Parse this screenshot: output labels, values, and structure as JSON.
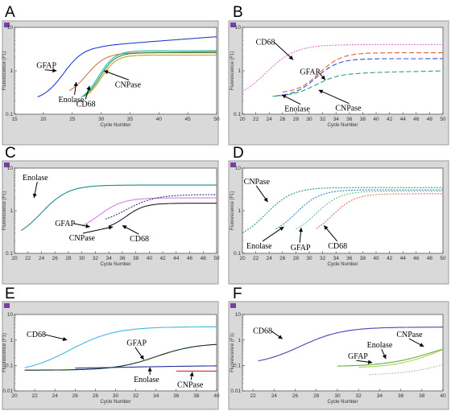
{
  "chart_data": [
    {
      "panel": "A",
      "type": "line",
      "xlabel": "Cycle Number",
      "ylabel": "Fluorescence (F1)",
      "xlim": [
        15,
        50
      ],
      "xticks": [
        15,
        20,
        25,
        30,
        35,
        40,
        45,
        50
      ],
      "ylim": [
        0.1,
        10
      ],
      "yscale": "log",
      "yticks": [
        0.1,
        1,
        10
      ],
      "series": [
        {
          "name": "GFAP",
          "color": "#1f3fcc",
          "dash": "solid",
          "start": 19,
          "end": 50,
          "midpoint": 23.5,
          "floor": 0.2,
          "plateau": 3.8,
          "steep": 0.55,
          "drift": 0.3
        },
        {
          "name": "Enolase",
          "color": "#e07040",
          "dash": "solid",
          "start": 24.5,
          "end": 50,
          "midpoint": 27.5,
          "floor": 0.25,
          "plateau": 2.6,
          "steep": 0.6,
          "drift": 0.05
        },
        {
          "name": "CD68",
          "color": "#20b8a8",
          "dash": "solid",
          "start": 26.5,
          "end": 50,
          "midpoint": 29.5,
          "floor": 0.18,
          "plateau": 2.9,
          "steep": 0.7,
          "drift": 0
        },
        {
          "name": "CNPase",
          "color": "#2a8a4a",
          "dash": "solid",
          "start": 27,
          "end": 50,
          "midpoint": 29.8,
          "floor": 0.2,
          "plateau": 2.6,
          "steep": 0.75,
          "drift": 0
        },
        {
          "name": "",
          "color": "#c8a020",
          "dash": "solid",
          "start": 27,
          "end": 50,
          "midpoint": 30,
          "floor": 0.2,
          "plateau": 2.3,
          "steep": 0.75,
          "drift": 0
        }
      ],
      "callouts": [
        {
          "text": "GFAP",
          "x": 18.8,
          "y": 1.15,
          "anchor": "start",
          "tx": 22.3,
          "ty": 1.0
        },
        {
          "text": "Enolase",
          "x": 22.6,
          "y": 0.19,
          "anchor": "start",
          "tx": 25.7,
          "ty": 0.55
        },
        {
          "text": "CD68",
          "x": 25.7,
          "y": 0.15,
          "anchor": "start",
          "tx": 28.0,
          "ty": 0.45
        },
        {
          "text": "CNPase",
          "x": 32.4,
          "y": 0.42,
          "anchor": "start",
          "tx": 30.5,
          "ty": 1.0
        }
      ]
    },
    {
      "panel": "B",
      "type": "line",
      "xlabel": "Cycle Number",
      "ylabel": "Fluorescence (F1)",
      "xlim": [
        20,
        50
      ],
      "xticks": [
        20,
        22,
        24,
        26,
        28,
        30,
        32,
        34,
        36,
        38,
        40,
        42,
        44,
        46,
        48,
        50
      ],
      "ylim": [
        0.1,
        10
      ],
      "yscale": "log",
      "yticks": [
        0.1,
        1,
        10
      ],
      "series": [
        {
          "name": "CD68",
          "color": "#e070d0",
          "dash": "2,1.5",
          "start": 20,
          "end": 50,
          "midpoint": 23.5,
          "floor": 0.2,
          "plateau": 4.0,
          "steep": 0.45,
          "drift": 0
        },
        {
          "name": "GFAP",
          "color": "#e06040",
          "dash": "6,3",
          "start": 26,
          "end": 50,
          "midpoint": 31.5,
          "floor": 0.3,
          "plateau": 2.6,
          "steep": 0.6,
          "drift": 0
        },
        {
          "name": "",
          "color": "#3050d0",
          "dash": "6,3",
          "start": 25,
          "end": 50,
          "midpoint": 31,
          "floor": 0.25,
          "plateau": 1.9,
          "steep": 0.6,
          "drift": 0
        },
        {
          "name": "Enolase",
          "color": "#30a070",
          "dash": "6,3",
          "start": 24.5,
          "end": 50,
          "midpoint": 31,
          "floor": 0.25,
          "plateau": 0.9,
          "steep": 0.55,
          "drift": 0.1
        }
      ],
      "callouts": [
        {
          "text": "CD68",
          "x": 22.0,
          "y": 4.0,
          "anchor": "start",
          "tx": 27.6,
          "ty": 1.8
        },
        {
          "text": "GFAP",
          "x": 28.6,
          "y": 0.82,
          "anchor": "start",
          "tx": 32.4,
          "ty": 0.62
        },
        {
          "text": "Enolase",
          "x": 26.3,
          "y": 0.115,
          "anchor": "start",
          "tx": 25.9,
          "ty": 0.28
        },
        {
          "text": "CNPase",
          "x": 33.9,
          "y": 0.12,
          "anchor": "start",
          "tx": 31.4,
          "ty": 0.36
        }
      ]
    },
    {
      "panel": "C",
      "type": "line",
      "xlabel": "Cycle Number",
      "ylabel": "Fluorescence (F1)",
      "xlim": [
        20,
        50
      ],
      "xticks": [
        20,
        22,
        24,
        26,
        28,
        30,
        32,
        34,
        36,
        38,
        40,
        42,
        44,
        46,
        48,
        50
      ],
      "ylim": [
        0.1,
        10
      ],
      "yscale": "log",
      "yticks": [
        0.1,
        1,
        10
      ],
      "series": [
        {
          "name": "Enolase",
          "color": "#1e8a8a",
          "dash": "solid",
          "start": 21,
          "end": 50,
          "midpoint": 24,
          "floor": 0.2,
          "plateau": 4.0,
          "steep": 0.5,
          "drift": 0
        },
        {
          "name": "GFAP",
          "color": "#d080e0",
          "dash": "solid",
          "start": 30,
          "end": 50,
          "midpoint": 32.5,
          "floor": 0.3,
          "plateau": 2.0,
          "steep": 0.55,
          "drift": 0
        },
        {
          "name": "CNPase",
          "color": "#303080",
          "dash": "2,1.5",
          "start": 33.5,
          "end": 50,
          "midpoint": 36.5,
          "floor": 0.45,
          "plateau": 2.4,
          "steep": 0.45,
          "drift": 0
        },
        {
          "name": "CD68",
          "color": "#202020",
          "dash": "solid",
          "start": 34,
          "end": 50,
          "midpoint": 36.5,
          "floor": 0.35,
          "plateau": 1.5,
          "steep": 0.7,
          "drift": 0
        }
      ],
      "callouts": [
        {
          "text": "Enolase",
          "x": 21.2,
          "y": 5.2,
          "anchor": "start",
          "tx": 22.9,
          "ty": 2.0
        },
        {
          "text": "GFAP",
          "x": 26.0,
          "y": 0.44,
          "anchor": "start",
          "tx": 31.2,
          "ty": 0.42
        },
        {
          "text": "CNPase",
          "x": 28.1,
          "y": 0.2,
          "anchor": "start",
          "tx": 34.6,
          "ty": 0.42
        },
        {
          "text": "CD68",
          "x": 37.1,
          "y": 0.19,
          "anchor": "start",
          "tx": 36.0,
          "ty": 0.45
        }
      ]
    },
    {
      "panel": "D",
      "type": "line",
      "xlabel": "Cycle Number",
      "ylabel": "Fluorescence (F1)",
      "xlim": [
        20,
        50
      ],
      "xticks": [
        20,
        22,
        24,
        26,
        28,
        30,
        32,
        34,
        36,
        38,
        40,
        42,
        44,
        46,
        48,
        50
      ],
      "ylim": [
        0.1,
        10
      ],
      "yscale": "log",
      "yticks": [
        0.1,
        1,
        10
      ],
      "series": [
        {
          "name": "CNPase",
          "color": "#30a060",
          "dash": "2,1.5",
          "start": 20,
          "end": 50,
          "midpoint": 23.5,
          "floor": 0.2,
          "plateau": 3.5,
          "steep": 0.5,
          "drift": 0
        },
        {
          "name": "Enolase",
          "color": "#3080c0",
          "dash": "2,1.5",
          "start": 25,
          "end": 50,
          "midpoint": 28,
          "floor": 0.25,
          "plateau": 3.1,
          "steep": 0.55,
          "drift": 0
        },
        {
          "name": "GFAP",
          "color": "#60c0a0",
          "dash": "2,1.5",
          "start": 28,
          "end": 50,
          "midpoint": 31,
          "floor": 0.25,
          "plateau": 2.9,
          "steep": 0.55,
          "drift": 0
        },
        {
          "name": "CD68",
          "color": "#e07060",
          "dash": "2,1.5",
          "start": 31,
          "end": 50,
          "midpoint": 33.5,
          "floor": 0.25,
          "plateau": 2.5,
          "steep": 0.6,
          "drift": 0
        }
      ],
      "callouts": [
        {
          "text": "CNPase",
          "x": 20.2,
          "y": 4.2,
          "anchor": "start",
          "tx": 23.8,
          "ty": 1.6
        },
        {
          "text": "Enolase",
          "x": 20.6,
          "y": 0.13,
          "anchor": "start",
          "tx": 26.2,
          "ty": 0.42
        },
        {
          "text": "GFAP",
          "x": 27.2,
          "y": 0.12,
          "anchor": "start",
          "tx": 28.8,
          "ty": 0.4
        },
        {
          "text": "CD68",
          "x": 32.8,
          "y": 0.13,
          "anchor": "start",
          "tx": 32.2,
          "ty": 0.45
        }
      ]
    },
    {
      "panel": "E",
      "type": "line",
      "xlabel": "Cycle Number",
      "ylabel": "Fluorescence (F1)",
      "xlim": [
        20,
        40
      ],
      "xticks": [
        20,
        22,
        24,
        26,
        28,
        30,
        32,
        34,
        36,
        38,
        40
      ],
      "ylim": [
        0.01,
        10
      ],
      "yscale": "log",
      "yticks": [
        0.01,
        0.1,
        1,
        10
      ],
      "series": [
        {
          "name": "CD68",
          "color": "#40b8e0",
          "dash": "solid",
          "start": 21,
          "end": 40,
          "midpoint": 25.5,
          "floor": 0.05,
          "plateau": 3.3,
          "steep": 0.45,
          "drift": 0
        },
        {
          "name": "GFAP",
          "color": "#103010",
          "dash": "solid",
          "start": 21,
          "end": 40,
          "midpoint": 34,
          "floor": 0.065,
          "plateau": 0.75,
          "steep": 0.5,
          "drift": 0
        },
        {
          "name": "Enolase",
          "color": "#2030a0",
          "dash": "solid",
          "start": 26,
          "end": 40,
          "midpoint": 30,
          "floor": 0.07,
          "plateau": 0.1,
          "steep": 0.2,
          "drift": 0
        },
        {
          "name": "CNPase",
          "color": "#e02040",
          "dash": "solid",
          "start": 36,
          "end": 40,
          "midpoint": 30,
          "floor": 0.06,
          "plateau": 0.06,
          "steep": 0.2,
          "drift": 0
        }
      ],
      "callouts": [
        {
          "text": "CD68",
          "x": 21.2,
          "y": 1.3,
          "anchor": "start",
          "tx": 25.2,
          "ty": 1.0
        },
        {
          "text": "GFAP",
          "x": 31.1,
          "y": 0.6,
          "anchor": "start",
          "tx": 32.8,
          "ty": 0.17
        },
        {
          "text": "Enolase",
          "x": 31.8,
          "y": 0.022,
          "anchor": "start",
          "tx": 33.4,
          "ty": 0.085
        },
        {
          "text": "CNPase",
          "x": 36.1,
          "y": 0.014,
          "anchor": "start",
          "tx": 37.6,
          "ty": 0.055
        }
      ]
    },
    {
      "panel": "F",
      "type": "line",
      "xlabel": "Cycle Number",
      "ylabel": "Fluorescence (F1)",
      "xlim": [
        21,
        40
      ],
      "xticks": [
        22,
        24,
        26,
        28,
        30,
        32,
        34,
        36,
        38,
        40
      ],
      "ylim": [
        0.01,
        10
      ],
      "yscale": "log",
      "yticks": [
        0.01,
        0.1,
        1,
        10
      ],
      "series": [
        {
          "name": "CD68",
          "color": "#5040b0",
          "dash": "solid",
          "start": 22.5,
          "end": 40,
          "midpoint": 26.5,
          "floor": 0.1,
          "plateau": 3.2,
          "steep": 0.5,
          "drift": 0
        },
        {
          "name": "GFAP",
          "color": "#60b030",
          "dash": "solid",
          "start": 30,
          "end": 40,
          "midpoint": 39,
          "floor": 0.09,
          "plateau": 1.2,
          "steep": 0.45,
          "drift": 0
        },
        {
          "name": "Enolase",
          "color": "#b0d060",
          "dash": "solid",
          "start": 32,
          "end": 40,
          "midpoint": 39.5,
          "floor": 0.08,
          "plateau": 1.5,
          "steep": 0.5,
          "drift": 0
        },
        {
          "name": "CNPase",
          "color": "#bbbbbb",
          "dash": "2,1.5",
          "start": 33,
          "end": 40,
          "midpoint": 42,
          "floor": 0.04,
          "plateau": 1.0,
          "steep": 0.4,
          "drift": 0
        }
      ],
      "callouts": [
        {
          "text": "CD68",
          "x": 22.0,
          "y": 1.8,
          "anchor": "start",
          "tx": 24.8,
          "ty": 1.1
        },
        {
          "text": "Enolase",
          "x": 32.8,
          "y": 0.5,
          "anchor": "start",
          "tx": 34.6,
          "ty": 0.18
        },
        {
          "text": "GFAP",
          "x": 31.0,
          "y": 0.18,
          "anchor": "start",
          "tx": 33.3,
          "ty": 0.13
        },
        {
          "text": "CNPase",
          "x": 35.6,
          "y": 1.3,
          "anchor": "start",
          "tx": 38.2,
          "ty": 0.55
        }
      ]
    }
  ]
}
